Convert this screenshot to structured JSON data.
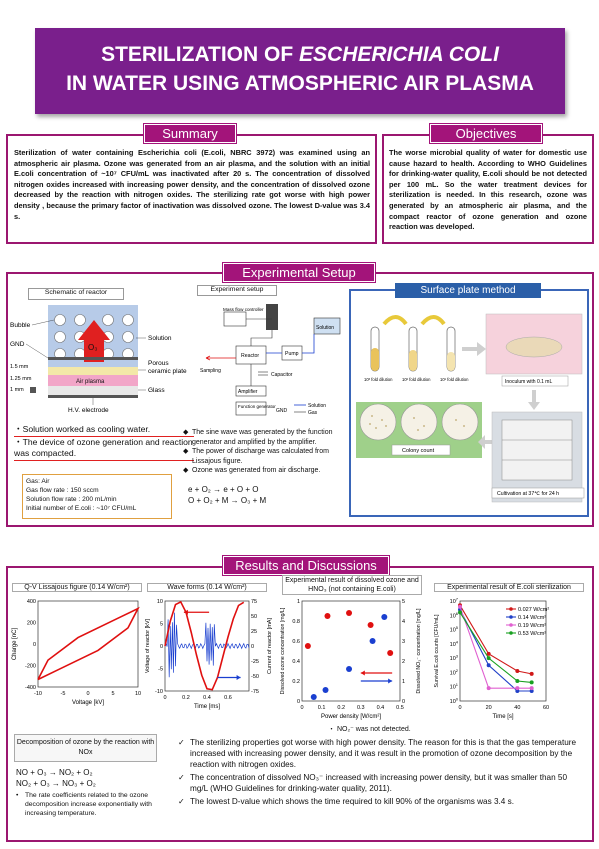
{
  "title": {
    "line1_a": "STERILIZATION OF ",
    "line1_b": "ESCHERICHIA COLI",
    "line2": "IN WATER USING ATMOSPHERIC AIR PLASMA"
  },
  "summary": {
    "heading": "Summary",
    "text": "Sterilization of water containing Escherichia coli (E.coli, NBRC 3972) was examined using an atmospheric air plasma. Ozone was generated from an air plasma, and the solution with an initial E.coli concentration of ~10⁷ CFU/mL was inactivated after 20 s. The concentration of dissolved nitrogen oxides increased with increasing power density, and the concentration of dissolved ozone decreased by the reaction with nitrogen oxides. The sterilizing rate got worse with high power density , because the primary factor of inactivation was dissolved ozone. The lowest D-value was 3.4 s."
  },
  "objectives": {
    "heading": "Objectives",
    "text": "The worse microbial quality of water for domestic use cause hazard to health. According to WHO Guidelines for drinking-water quality, E.coli should be not detected per 100 mL. So the water treatment devices for sterilization is needed. In this research, ozone was generated by an atmospheric air plasma, and the compact reactor of ozone generation and ozone reaction was developed."
  },
  "setup": {
    "heading": "Experimental Setup",
    "schematic_title": "Schematic of reactor",
    "labels": {
      "bubble": "Bubble",
      "gnd": "GND",
      "solution": "Solution",
      "porous": "Porous",
      "ceramic": "ceramic plate",
      "air_plasma": "Air plasma",
      "glass": "Glass",
      "hv": "H.V. electrode",
      "o3": "O₃",
      "d1": "1.5 mm",
      "d2": "1.25 mm",
      "d3": "1 mm"
    },
    "notes": [
      "・Solution worked as cooling water.",
      "・The device of ozone generation and reaction was compacted."
    ],
    "params": [
      "Gas: Air",
      "Gas flow rate : 150 sccm",
      "Solution flow rate : 200 mL/min",
      "Initial number of E.coli : ~10⁷ CFU/mL"
    ],
    "exp_title": "Experiment setup",
    "exp_labels": {
      "mfc": "Mass flow controller",
      "solution": "Solution",
      "reactor": "Reactor",
      "pump": "Pump",
      "sampling": "Sampling",
      "capacitor": "Capacitor",
      "amplifier": "Amplifier",
      "funcgen": "Function generator",
      "gnd": "GND",
      "leg_solution": "Solution",
      "leg_gas": "Gas"
    },
    "exp_bullets": [
      "The sine wave was generated by the function generator and amplified by the amplifier.",
      "The power of discharge was calculated from Lissajous figure.",
      "Ozone was generated from air discharge."
    ],
    "reactions": [
      "e + O₂ → e + O + O",
      "O + O₂ + M → O₃ + M"
    ],
    "surface_title": "Surface plate method",
    "surface_labels": {
      "dil1": "10³ fold dilution",
      "dil2": "10² fold dilution",
      "dil3": "10¹ fold dilution",
      "inoculum": "Inoculum with 0.1 mL",
      "colony": "Colony count",
      "cultivation": "Cultivation at 37℃ for 24 h"
    }
  },
  "results": {
    "heading": "Results and Discussions",
    "chart_titles": {
      "lissajous": "Q-V Lissajous figure (0.14 W/cm²)",
      "wave": "Wave forms (0.14 W/cm²)",
      "dissolved": "Experimental result of dissolved ozone and HNO₃ (not containing E.coli)",
      "ecoli": "Experimental result of E.coli sterilization"
    },
    "no2_note": "・ NO₂⁻ was not detected.",
    "decomp_title": "Decomposition of ozone by the reaction with NOx",
    "decomp_reactions": [
      "NO + O₃ → NO₂ + O₂",
      "NO₂ + O₃ → NO₃ + O₂"
    ],
    "decomp_note": "The rate coefficients related to the ozone decomposition increase exponentially with increasing temperature.",
    "bullets": [
      "The sterilizing properties got worse with high power density. The reason for this is that the gas temperature increased with increasing power density, and it was result in the promotion of ozone decomposition by the reaction with nitrogen oxides.",
      "The concentration of dissolved NO₃⁻ increased with increasing power density, but it was smaller than 50 mg/L (WHO Guidelines for drinking-water quality, 2011).",
      "The lowest D-value which shows the time required to kill 90% of the organisms was 3.4 s."
    ]
  },
  "chart_data": [
    {
      "type": "line",
      "title": "Q-V Lissajous figure (0.14 W/cm²)",
      "xlabel": "Voltage [kV]",
      "ylabel": "Charge [nC]",
      "xlim": [
        -10,
        10
      ],
      "ylim": [
        -400,
        400
      ],
      "xticks": [
        -10,
        -5,
        0,
        5,
        10
      ],
      "yticks": [
        -400,
        -300,
        -200,
        -100,
        0,
        100,
        200,
        300,
        400
      ],
      "series": [
        {
          "x": [
            -10,
            -8,
            -2,
            6,
            10,
            8,
            2,
            -6,
            -10
          ],
          "y": [
            -330,
            -150,
            60,
            240,
            330,
            150,
            -60,
            -240,
            -330
          ]
        }
      ],
      "color": "#e01010"
    },
    {
      "type": "line",
      "title": "Wave forms (0.14 W/cm²)",
      "xlabel": "Time [ms]",
      "ylabel": "Voltage of reactor [kV]",
      "y2label": "Current of reactor [mA]",
      "xlim": [
        0,
        0.8
      ],
      "ylim": [
        -10,
        10
      ],
      "y2lim": [
        -75,
        75
      ],
      "xticks": [
        0,
        0.2,
        0.4,
        0.6
      ],
      "yticks": [
        -10,
        -5,
        0,
        5,
        10
      ],
      "y2ticks": [
        -75,
        -50,
        -25,
        0,
        25,
        50,
        75
      ],
      "voltage": {
        "x": [
          0,
          0.05,
          0.1,
          0.15,
          0.2,
          0.25,
          0.3,
          0.35,
          0.4,
          0.45,
          0.5,
          0.55,
          0.6,
          0.65,
          0.7,
          0.75
        ],
        "y": [
          0,
          5.5,
          9.2,
          9.8,
          7.5,
          3,
          -2,
          -6.5,
          -9.5,
          -9.7,
          -7,
          -2.5,
          2,
          6,
          9,
          9.7
        ],
        "color": "#e01010"
      },
      "current": {
        "color": "#1a3fd0"
      }
    },
    {
      "type": "scatter",
      "title": "Experimental result of dissolved ozone and HNO₃ (not containing E.coli)",
      "xlabel": "Power density [W/cm²]",
      "ylabel": "Dissolved ozone concentration [mg/L]",
      "y2label": "Dissolved NO₃⁻ concentration [mg/L]",
      "xlim": [
        0,
        0.5
      ],
      "ylim": [
        0,
        1
      ],
      "y2lim": [
        0,
        5
      ],
      "xticks": [
        0,
        0.1,
        0.2,
        0.3,
        0.4,
        0.5
      ],
      "yticks": [
        0,
        0.2,
        0.4,
        0.6,
        0.8,
        1
      ],
      "y2ticks": [
        0,
        1,
        2,
        3,
        4,
        5
      ],
      "series": [
        {
          "name": "ozone",
          "x": [
            0.03,
            0.13,
            0.24,
            0.35,
            0.45
          ],
          "y": [
            0.55,
            0.85,
            0.88,
            0.76,
            0.48
          ],
          "color": "#e01010"
        },
        {
          "name": "NO3",
          "x": [
            0.06,
            0.12,
            0.24,
            0.36,
            0.42
          ],
          "y": [
            0.2,
            0.55,
            1.6,
            3.0,
            4.2
          ],
          "color": "#1a3fd0",
          "axis": "y2"
        }
      ]
    },
    {
      "type": "line",
      "title": "Experimental result of E.coli sterilization",
      "xlabel": "Time [s]",
      "ylabel": "Survival E.coli counts [CFU/mL]",
      "xlim": [
        0,
        60
      ],
      "ylog": true,
      "ylim_exp": [
        0,
        7
      ],
      "xticks": [
        0,
        20,
        40,
        60
      ],
      "series": [
        {
          "name": "0.027 W/cm²",
          "x": [
            0,
            20,
            40,
            50
          ],
          "y_exp": [
            6.7,
            3.3,
            2.1,
            1.9
          ],
          "color": "#d01818"
        },
        {
          "name": "0.14 W/cm²",
          "x": [
            0,
            20,
            40,
            50
          ],
          "y_exp": [
            6.4,
            2.5,
            0.7,
            0.7
          ],
          "color": "#2040c8"
        },
        {
          "name": "0.19 W/cm²",
          "x": [
            0,
            20,
            40,
            50
          ],
          "y_exp": [
            6.6,
            0.9,
            0.9,
            0.9
          ],
          "color": "#e060d0"
        },
        {
          "name": "0.53 W/cm²",
          "x": [
            0,
            20,
            40,
            50
          ],
          "y_exp": [
            6.2,
            3.0,
            1.4,
            1.3
          ],
          "color": "#18a020"
        }
      ]
    }
  ]
}
